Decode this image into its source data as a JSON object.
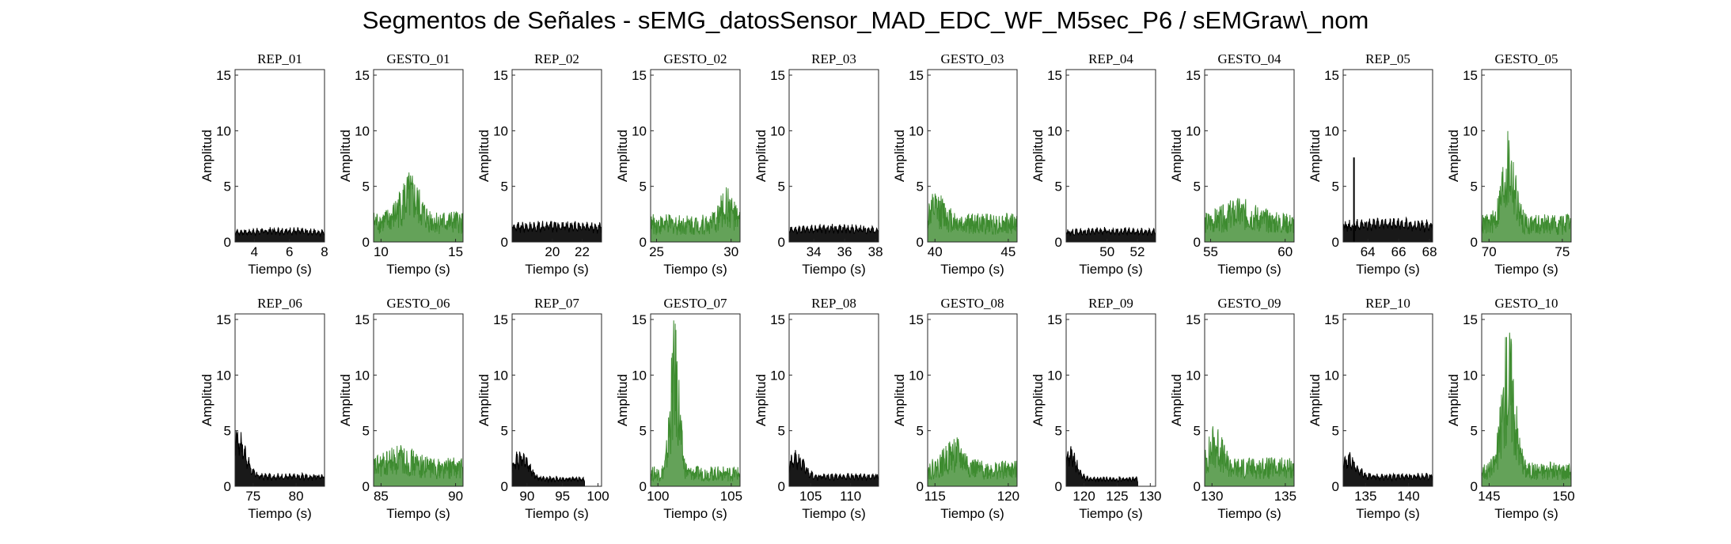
{
  "figure_title": "Segmentos de Señales - sEMG_datosSensor_MAD_EDC_WF_M5sec_P6 / sEMGraw\\_nom",
  "colors": {
    "rep": "#000000",
    "gesto": "#3d8b2f",
    "axes": "#262626"
  },
  "chart_data": [
    {
      "type": "area",
      "title": "REP_01",
      "xlabel": "Tiempo (s)",
      "ylabel": "Amplitud",
      "xlim": [
        2.9,
        8
      ],
      "ylim": [
        0,
        15.5
      ],
      "xticks": [
        4,
        6,
        8
      ],
      "yticks": [
        0,
        5,
        10,
        15
      ],
      "kind": "rep",
      "profile": {
        "x_start": 2.9,
        "x_end": 8,
        "base": 1.2,
        "peak": 1.4,
        "peak_at": 0.5,
        "peak_width": 0.3
      }
    },
    {
      "type": "area",
      "title": "GESTO_01",
      "xlabel": "Tiempo (s)",
      "ylabel": "Amplitud",
      "xlim": [
        9.5,
        15.5
      ],
      "ylim": [
        0,
        15.5
      ],
      "xticks": [
        10,
        15
      ],
      "yticks": [
        0,
        5,
        10,
        15
      ],
      "kind": "gesto",
      "profile": {
        "x_start": 9.5,
        "x_end": 15.5,
        "base": 2.8,
        "peak": 6.3,
        "peak_at": 0.4,
        "peak_width": 0.15
      }
    },
    {
      "type": "area",
      "title": "REP_02",
      "xlabel": "Tiempo (s)",
      "ylabel": "Amplitud",
      "xlim": [
        17.3,
        23.3
      ],
      "ylim": [
        0,
        15.5
      ],
      "xticks": [
        20,
        22
      ],
      "yticks": [
        0,
        5,
        10,
        15
      ],
      "kind": "rep",
      "profile": {
        "x_start": 17.3,
        "x_end": 23.3,
        "base": 1.8,
        "peak": 2.0,
        "peak_at": 0.5,
        "peak_width": 0.3
      }
    },
    {
      "type": "area",
      "title": "GESTO_02",
      "xlabel": "Tiempo (s)",
      "ylabel": "Amplitud",
      "xlim": [
        24.6,
        30.6
      ],
      "ylim": [
        0,
        15.5
      ],
      "xticks": [
        25,
        30
      ],
      "yticks": [
        0,
        5,
        10,
        15
      ],
      "kind": "gesto",
      "profile": {
        "x_start": 24.6,
        "x_end": 30.6,
        "base": 2.5,
        "peak": 5.0,
        "peak_at": 0.85,
        "peak_width": 0.1
      }
    },
    {
      "type": "area",
      "title": "REP_03",
      "xlabel": "Tiempo (s)",
      "ylabel": "Amplitud",
      "xlim": [
        32.4,
        38.2
      ],
      "ylim": [
        0,
        15.5
      ],
      "xticks": [
        34,
        36,
        38
      ],
      "yticks": [
        0,
        5,
        10,
        15
      ],
      "kind": "rep",
      "profile": {
        "x_start": 32.4,
        "x_end": 38.2,
        "base": 1.5,
        "peak": 1.7,
        "peak_at": 0.5,
        "peak_width": 0.3
      }
    },
    {
      "type": "area",
      "title": "GESTO_03",
      "xlabel": "Tiempo (s)",
      "ylabel": "Amplitud",
      "xlim": [
        39.5,
        45.6
      ],
      "ylim": [
        0,
        15.5
      ],
      "xticks": [
        40,
        45
      ],
      "yticks": [
        0,
        5,
        10,
        15
      ],
      "kind": "gesto",
      "profile": {
        "x_start": 39.5,
        "x_end": 45.6,
        "base": 2.6,
        "peak": 4.5,
        "peak_at": 0.1,
        "peak_width": 0.15
      }
    },
    {
      "type": "area",
      "title": "REP_04",
      "xlabel": "Tiempo (s)",
      "ylabel": "Amplitud",
      "xlim": [
        47.3,
        53.2
      ],
      "ylim": [
        0,
        15.5
      ],
      "xticks": [
        50,
        52
      ],
      "yticks": [
        0,
        5,
        10,
        15
      ],
      "kind": "rep",
      "profile": {
        "x_start": 47.3,
        "x_end": 53.2,
        "base": 1.2,
        "peak": 1.4,
        "peak_at": 0.5,
        "peak_width": 0.3
      }
    },
    {
      "type": "area",
      "title": "GESTO_04",
      "xlabel": "Tiempo (s)",
      "ylabel": "Amplitud",
      "xlim": [
        54.6,
        60.6
      ],
      "ylim": [
        0,
        15.5
      ],
      "xticks": [
        55,
        60
      ],
      "yticks": [
        0,
        5,
        10,
        15
      ],
      "kind": "gesto",
      "profile": {
        "x_start": 54.6,
        "x_end": 60.6,
        "base": 2.6,
        "peak": 4.0,
        "peak_at": 0.4,
        "peak_width": 0.25
      }
    },
    {
      "type": "area",
      "title": "REP_05",
      "xlabel": "Tiempo (s)",
      "ylabel": "Amplitud",
      "xlim": [
        62.4,
        68.2
      ],
      "ylim": [
        0,
        15.5
      ],
      "xticks": [
        64,
        66,
        68
      ],
      "yticks": [
        0,
        5,
        10,
        15
      ],
      "kind": "rep",
      "profile": {
        "x_start": 62.4,
        "x_end": 68.2,
        "base": 2.0,
        "peak": 2.3,
        "peak_at": 0.5,
        "peak_width": 0.3,
        "spike_x": 63.1,
        "spike_y": 7.6
      }
    },
    {
      "type": "area",
      "title": "GESTO_05",
      "xlabel": "Tiempo (s)",
      "ylabel": "Amplitud",
      "xlim": [
        69.5,
        75.6
      ],
      "ylim": [
        0,
        15.5
      ],
      "xticks": [
        70,
        75
      ],
      "yticks": [
        0,
        5,
        10,
        15
      ],
      "kind": "gesto",
      "profile": {
        "x_start": 69.5,
        "x_end": 75.6,
        "base": 2.5,
        "peak": 10.3,
        "peak_at": 0.3,
        "peak_width": 0.1
      }
    },
    {
      "type": "area",
      "title": "REP_06",
      "xlabel": "Tiempo (s)",
      "ylabel": "Amplitud",
      "xlim": [
        72.9,
        83.3
      ],
      "ylim": [
        0,
        15.5
      ],
      "xticks": [
        75,
        80
      ],
      "yticks": [
        0,
        5,
        10,
        15
      ],
      "kind": "rep",
      "profile": {
        "x_start": 72.9,
        "x_end": 83.3,
        "base": 1.2,
        "peak": 5.8,
        "peak_at": 0.03,
        "peak_width": 0.12
      }
    },
    {
      "type": "area",
      "title": "GESTO_06",
      "xlabel": "Tiempo (s)",
      "ylabel": "Amplitud",
      "xlim": [
        84.5,
        90.5
      ],
      "ylim": [
        0,
        15.5
      ],
      "xticks": [
        85,
        90
      ],
      "yticks": [
        0,
        5,
        10,
        15
      ],
      "kind": "gesto",
      "profile": {
        "x_start": 84.5,
        "x_end": 90.5,
        "base": 2.6,
        "peak": 3.8,
        "peak_at": 0.3,
        "peak_width": 0.2
      }
    },
    {
      "type": "area",
      "title": "REP_07",
      "xlabel": "Tiempo (s)",
      "ylabel": "Amplitud",
      "xlim": [
        87.9,
        100.5
      ],
      "ylim": [
        0,
        15.5
      ],
      "xticks": [
        90,
        95,
        100
      ],
      "yticks": [
        0,
        5,
        10,
        15
      ],
      "kind": "rep",
      "x_data_end": 98.1,
      "profile": {
        "x_start": 87.9,
        "x_end": 98.1,
        "base": 0.9,
        "peak": 3.6,
        "peak_at": 0.12,
        "peak_width": 0.15
      }
    },
    {
      "type": "area",
      "title": "GESTO_07",
      "xlabel": "Tiempo (s)",
      "ylabel": "Amplitud",
      "xlim": [
        99.5,
        105.6
      ],
      "ylim": [
        0,
        15.5
      ],
      "xticks": [
        100,
        105
      ],
      "yticks": [
        0,
        5,
        10,
        15
      ],
      "kind": "gesto",
      "profile": {
        "x_start": 99.5,
        "x_end": 105.6,
        "base": 1.8,
        "peak": 15.3,
        "peak_at": 0.27,
        "peak_width": 0.07
      }
    },
    {
      "type": "area",
      "title": "REP_08",
      "xlabel": "Tiempo (s)",
      "ylabel": "Amplitud",
      "xlim": [
        102.3,
        113.5
      ],
      "ylim": [
        0,
        15.5
      ],
      "xticks": [
        105,
        110
      ],
      "yticks": [
        0,
        5,
        10,
        15
      ],
      "kind": "rep",
      "profile": {
        "x_start": 102.3,
        "x_end": 113.5,
        "base": 1.2,
        "peak": 3.3,
        "peak_at": 0.08,
        "peak_width": 0.12
      }
    },
    {
      "type": "area",
      "title": "GESTO_08",
      "xlabel": "Tiempo (s)",
      "ylabel": "Amplitud",
      "xlim": [
        114.5,
        120.6
      ],
      "ylim": [
        0,
        15.5
      ],
      "xticks": [
        115,
        120
      ],
      "yticks": [
        0,
        5,
        10,
        15
      ],
      "kind": "gesto",
      "profile": {
        "x_start": 114.5,
        "x_end": 120.6,
        "base": 2.3,
        "peak": 4.5,
        "peak_at": 0.3,
        "peak_width": 0.15
      }
    },
    {
      "type": "area",
      "title": "REP_09",
      "xlabel": "Tiempo (s)",
      "ylabel": "Amplitud",
      "xlim": [
        117.3,
        130.8
      ],
      "ylim": [
        0,
        15.5
      ],
      "xticks": [
        120,
        125,
        130
      ],
      "yticks": [
        0,
        5,
        10,
        15
      ],
      "kind": "rep",
      "x_data_end": 128.1,
      "profile": {
        "x_start": 117.3,
        "x_end": 128.1,
        "base": 0.9,
        "peak": 3.8,
        "peak_at": 0.06,
        "peak_width": 0.12
      }
    },
    {
      "type": "area",
      "title": "GESTO_09",
      "xlabel": "Tiempo (s)",
      "ylabel": "Amplitud",
      "xlim": [
        129.5,
        135.6
      ],
      "ylim": [
        0,
        15.5
      ],
      "xticks": [
        130,
        135
      ],
      "yticks": [
        0,
        5,
        10,
        15
      ],
      "kind": "gesto",
      "profile": {
        "x_start": 129.5,
        "x_end": 135.6,
        "base": 2.6,
        "peak": 5.9,
        "peak_at": 0.12,
        "peak_width": 0.1
      }
    },
    {
      "type": "area",
      "title": "REP_10",
      "xlabel": "Tiempo (s)",
      "ylabel": "Amplitud",
      "xlim": [
        132.4,
        142.8
      ],
      "ylim": [
        0,
        15.5
      ],
      "xticks": [
        135,
        140
      ],
      "yticks": [
        0,
        5,
        10,
        15
      ],
      "kind": "rep",
      "profile": {
        "x_start": 132.4,
        "x_end": 142.8,
        "base": 1.2,
        "peak": 3.3,
        "peak_at": 0.06,
        "peak_width": 0.12
      }
    },
    {
      "type": "area",
      "title": "GESTO_10",
      "xlabel": "Tiempo (s)",
      "ylabel": "Amplitud",
      "xlim": [
        144.5,
        150.5
      ],
      "ylim": [
        0,
        15.5
      ],
      "xticks": [
        145,
        150
      ],
      "yticks": [
        0,
        5,
        10,
        15
      ],
      "kind": "gesto",
      "profile": {
        "x_start": 144.5,
        "x_end": 150.5,
        "base": 2.2,
        "peak": 15.3,
        "peak_at": 0.3,
        "peak_width": 0.1
      }
    }
  ]
}
